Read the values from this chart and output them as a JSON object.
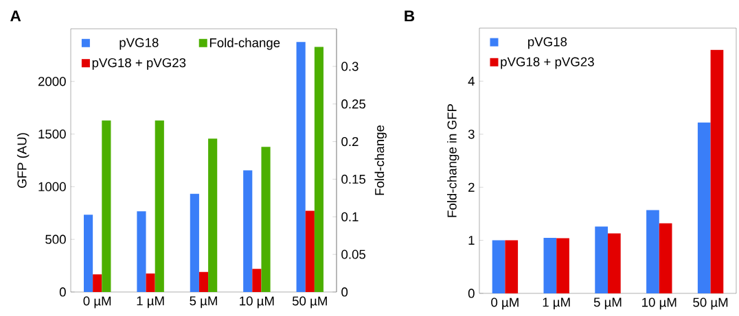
{
  "chart_data": [
    {
      "type": "bar",
      "annotations": [
        "A"
      ],
      "categories": [
        "0 µM",
        "1 µM",
        "5 µM",
        "10 µM",
        "50 µM"
      ],
      "ylabel": "GFP (AU)",
      "y2label": "Fold-change",
      "ylim": [
        0,
        2500
      ],
      "yticks": [
        0,
        500,
        1000,
        1500,
        2000
      ],
      "y2lim": [
        0,
        0.35
      ],
      "y2ticks": [
        0,
        0.05,
        0.1,
        0.15,
        0.2,
        0.25,
        0.3
      ],
      "legend": "top left",
      "series": [
        {
          "name": "pVG18",
          "color": "#3a7ef8",
          "values": [
            734,
            767,
            932,
            1155,
            2374
          ]
        },
        {
          "name": "pVG18 + pVG23",
          "color": "#e30000",
          "values": [
            167,
            176,
            191,
            220,
            772
          ]
        },
        {
          "name": "Fold-change",
          "color": "#4caf00",
          "axis": "y2",
          "values": [
            0.228,
            0.228,
            0.204,
            0.193,
            0.326
          ]
        }
      ]
    },
    {
      "type": "bar",
      "annotations": [
        "B"
      ],
      "categories": [
        "0 µM",
        "1 µM",
        "5 µM",
        "10 µM",
        "50 µM"
      ],
      "ylabel": "Fold-change in GFP",
      "ylim": [
        0,
        5
      ],
      "yticks": [
        0,
        1,
        2,
        3,
        4
      ],
      "legend": "top left",
      "series": [
        {
          "name": "pVG18",
          "color": "#3a7ef8",
          "values": [
            1.0,
            1.045,
            1.26,
            1.57,
            3.22
          ]
        },
        {
          "name": "pVG18 + pVG23",
          "color": "#e30000",
          "values": [
            1.0,
            1.04,
            1.13,
            1.32,
            4.59
          ]
        }
      ]
    }
  ]
}
